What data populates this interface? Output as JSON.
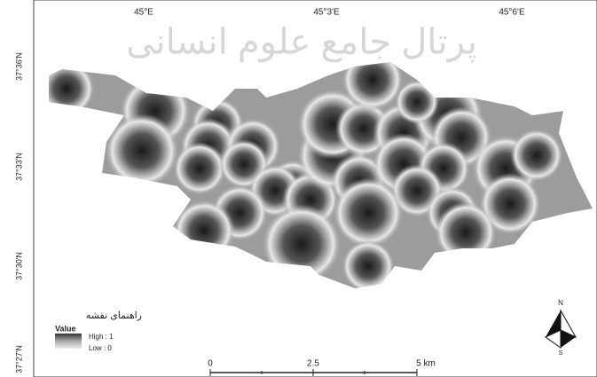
{
  "map": {
    "watermark": "پرتال جامع علوم انسانی",
    "longitude_labels": [
      "45°E",
      "45°3'E",
      "45°6'E"
    ],
    "latitude_labels": [
      "37°36'N",
      "37°33'N",
      "37°30'N",
      "37°27'N"
    ],
    "legend": {
      "title": "راهنمای نقشه",
      "field": "Value",
      "high": "High : 1",
      "low": "Low : 0"
    },
    "scale_bar": {
      "labels": [
        "0",
        "2.5",
        "5 km"
      ]
    },
    "north_arrow": {
      "north": "N",
      "south": "S"
    }
  }
}
